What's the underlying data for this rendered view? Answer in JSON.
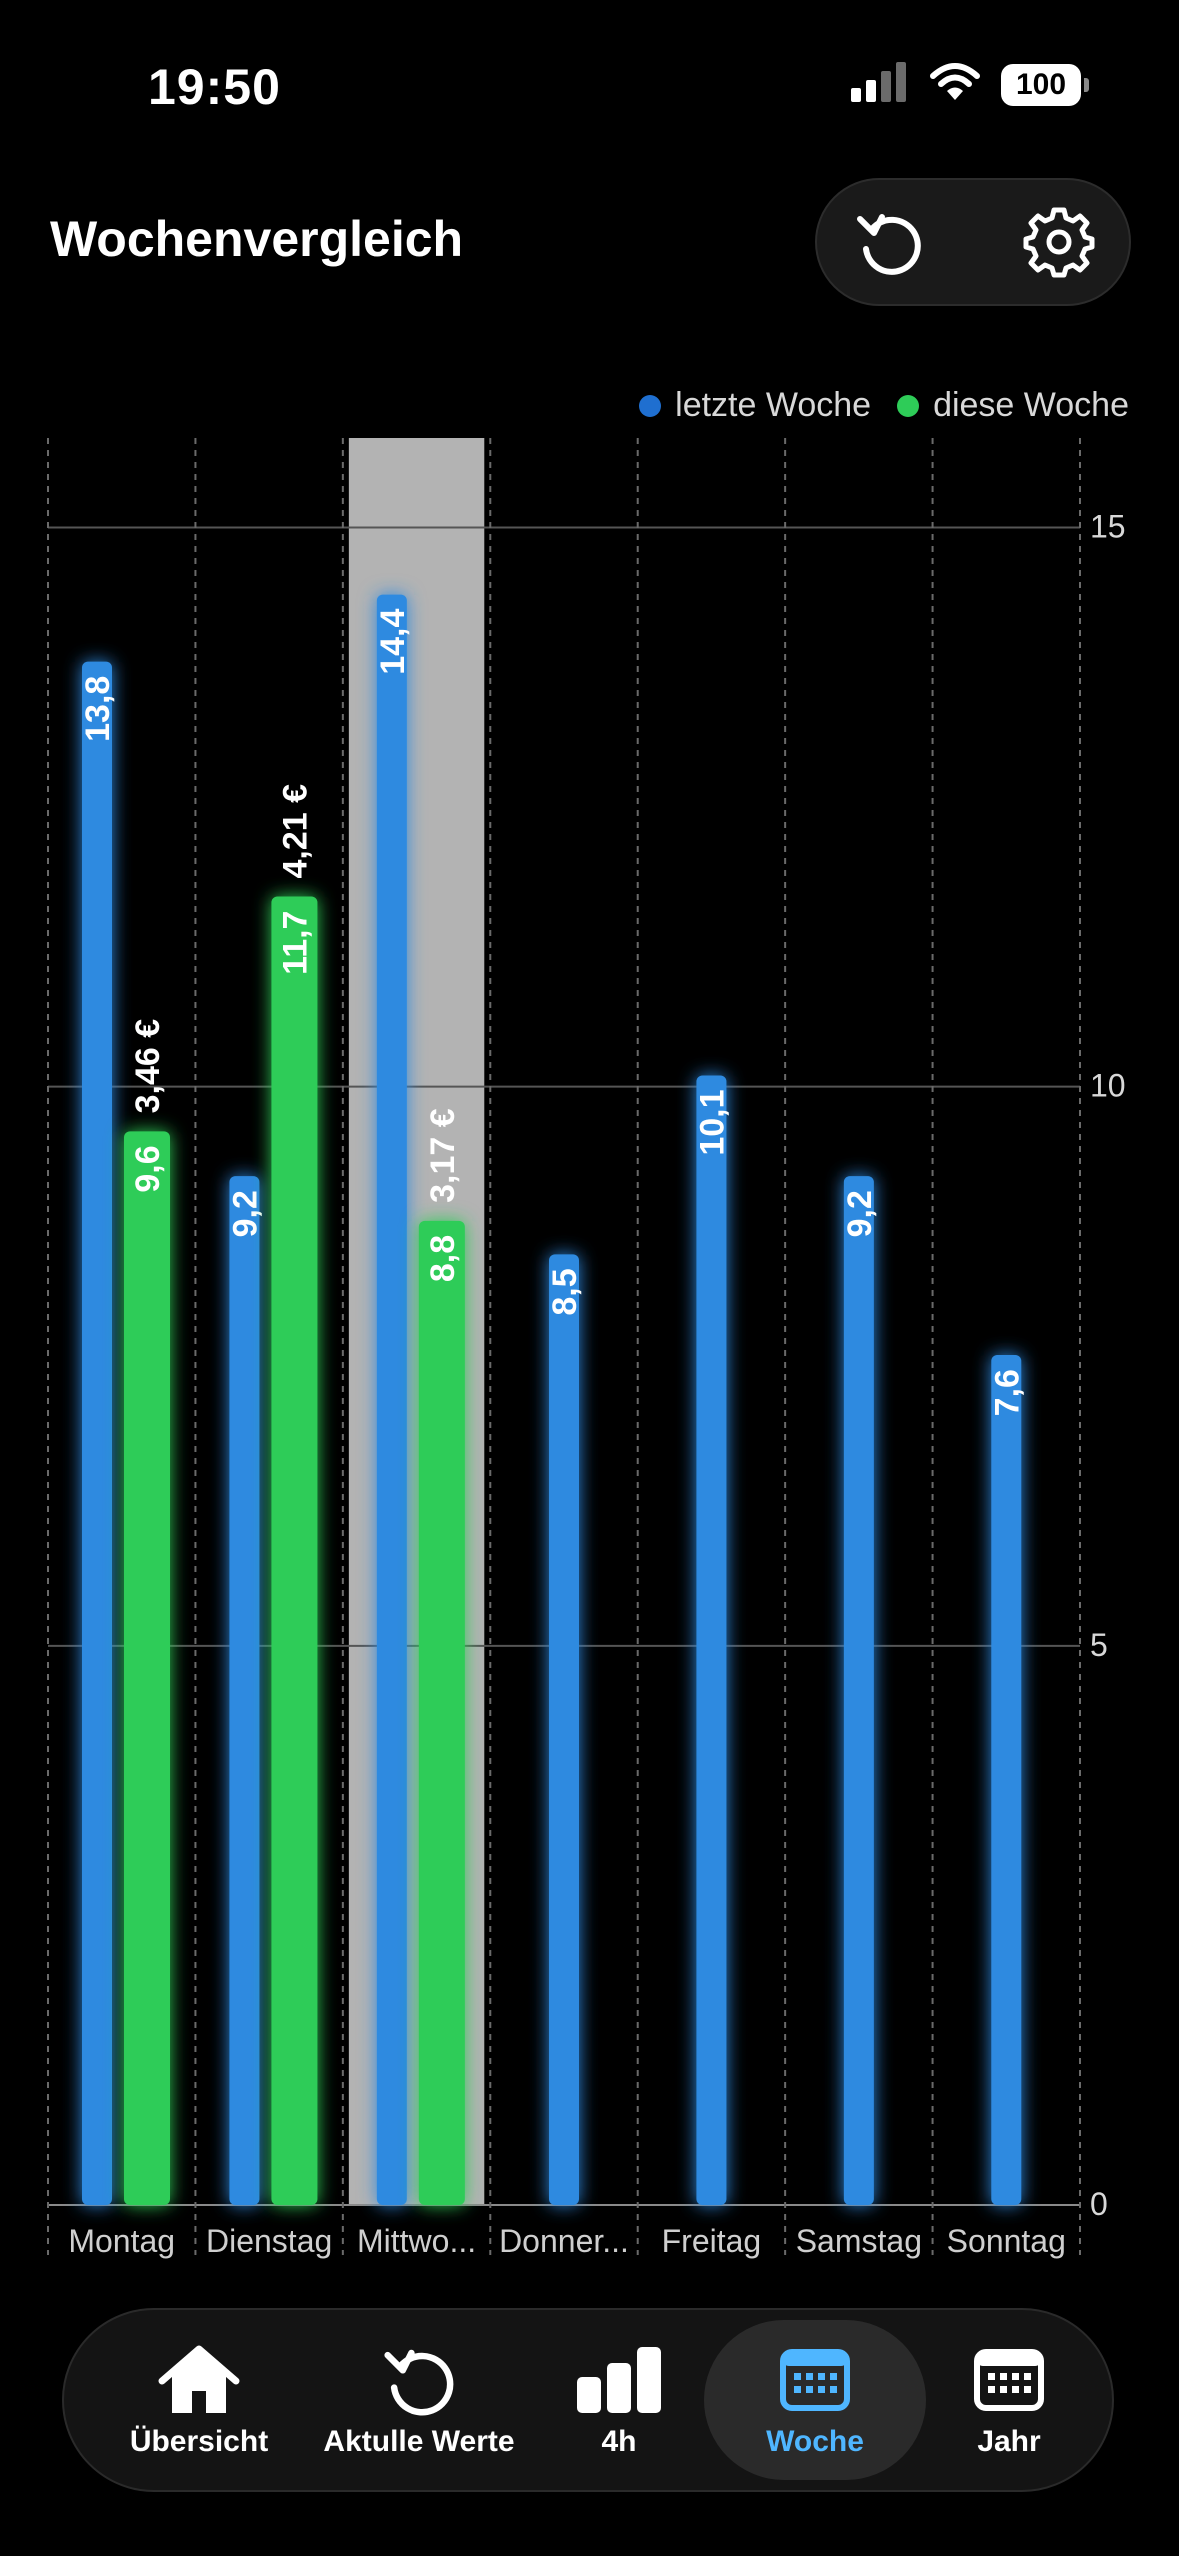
{
  "status_bar": {
    "time": "19:50",
    "battery": "100"
  },
  "header": {
    "title": "Wochenvergleich"
  },
  "icons": {
    "reload": "reload-icon",
    "settings": "gear-icon"
  },
  "colors": {
    "last_week": "#2f8ae0",
    "this_week": "#2ecc58",
    "highlight": "#b3b3b3",
    "active_tab": "#4fb6ff"
  },
  "chart_data": {
    "type": "bar",
    "categories": [
      "Montag",
      "Dienstag",
      "Mittwo...",
      "Donner...",
      "Freitag",
      "Samstag",
      "Sonntag"
    ],
    "series": [
      {
        "name": "letzte Woche",
        "values": [
          13.8,
          9.2,
          14.4,
          8.5,
          10.1,
          9.2,
          7.6
        ],
        "labels": [
          "13,8",
          "9,2",
          "14,4",
          "8,5",
          "10,1",
          "9,2",
          "7,6"
        ]
      },
      {
        "name": "diese Woche",
        "values": [
          9.6,
          11.7,
          8.8,
          null,
          null,
          null,
          null
        ],
        "labels": [
          "9,6",
          "11,7",
          "8,8",
          null,
          null,
          null,
          null
        ],
        "costs": [
          "3,46 €",
          "4,21 €",
          "3,17 €",
          null,
          null,
          null,
          null
        ]
      }
    ],
    "highlighted_category": "Mittwo...",
    "ylim": [
      0,
      15.8
    ],
    "yticks": [
      "0",
      "5",
      "10",
      "15"
    ],
    "y_axis_side": "right",
    "grid": true,
    "legend_position": "top-right"
  },
  "tabbar": {
    "tabs": [
      {
        "label": "Übersicht",
        "icon": "home-icon"
      },
      {
        "label": "Aktulle Werte",
        "icon": "reload-icon"
      },
      {
        "label": "4h",
        "icon": "bar-chart-icon"
      },
      {
        "label": "Woche",
        "icon": "calendar-week-icon",
        "active": true
      },
      {
        "label": "Jahr",
        "icon": "calendar-icon"
      }
    ]
  }
}
